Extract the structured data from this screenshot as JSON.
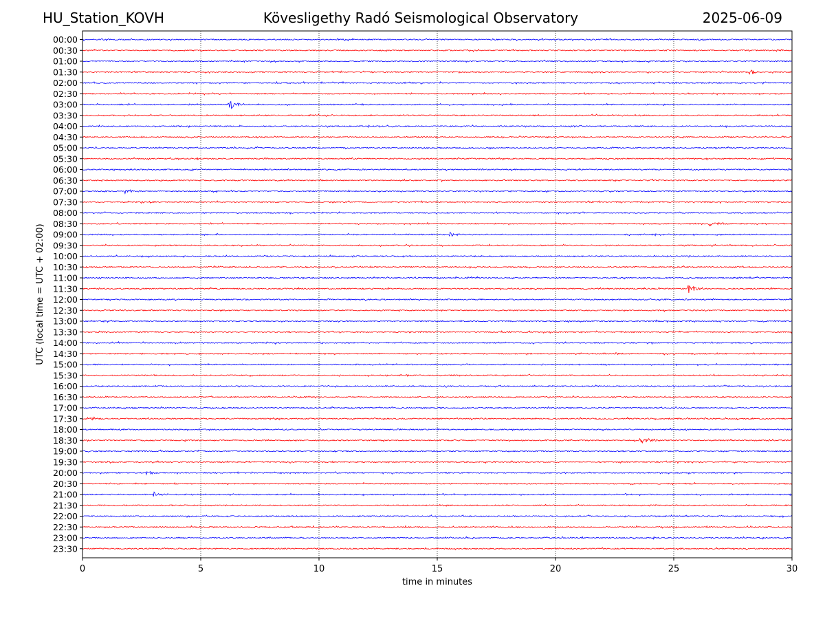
{
  "header": {
    "station": "HU_Station_KOVH",
    "title": "Kövesligethy Radó Seismological Observatory",
    "date": "2025-06-09"
  },
  "chart_data": {
    "type": "line",
    "chart_kind": "helicorder",
    "xlabel": "time in minutes",
    "ylabel": "UTC (local time = UTC + 02:00)",
    "xlim": [
      0,
      30
    ],
    "xticks": [
      0,
      5,
      10,
      15,
      20,
      25,
      30
    ],
    "grid": "vertical dotted at x ticks",
    "row_labels": [
      "00:00",
      "00:30",
      "01:00",
      "01:30",
      "02:00",
      "02:30",
      "03:00",
      "03:30",
      "04:00",
      "04:30",
      "05:00",
      "05:30",
      "06:00",
      "06:30",
      "07:00",
      "07:30",
      "08:00",
      "08:30",
      "09:00",
      "09:30",
      "10:00",
      "10:30",
      "11:00",
      "11:30",
      "12:00",
      "12:30",
      "13:00",
      "13:30",
      "14:00",
      "14:30",
      "15:00",
      "15:30",
      "16:00",
      "16:30",
      "17:00",
      "17:30",
      "18:00",
      "18:30",
      "19:00",
      "19:30",
      "20:00",
      "20:30",
      "21:00",
      "21:30",
      "22:00",
      "22:30",
      "23:00",
      "23:30"
    ],
    "colors": [
      "#0000ff",
      "#ff0000"
    ],
    "events": [
      {
        "row": "03:00",
        "minute": 6.2,
        "amplitude": "medium"
      },
      {
        "row": "11:30",
        "minute": 25.6,
        "amplitude": "medium"
      },
      {
        "row": "18:30",
        "minute": 23.6,
        "amplitude": "medium"
      },
      {
        "row": "01:30",
        "minute": 28.2,
        "amplitude": "small"
      },
      {
        "row": "17:30",
        "minute": 0.3,
        "amplitude": "small"
      },
      {
        "row": "21:00",
        "minute": 3.0,
        "amplitude": "small"
      },
      {
        "row": "20:00",
        "minute": 2.7,
        "amplitude": "small"
      },
      {
        "row": "08:30",
        "minute": 26.5,
        "amplitude": "small"
      },
      {
        "row": "09:00",
        "minute": 15.5,
        "amplitude": "small"
      },
      {
        "row": "07:00",
        "minute": 1.8,
        "amplitude": "small"
      }
    ]
  }
}
